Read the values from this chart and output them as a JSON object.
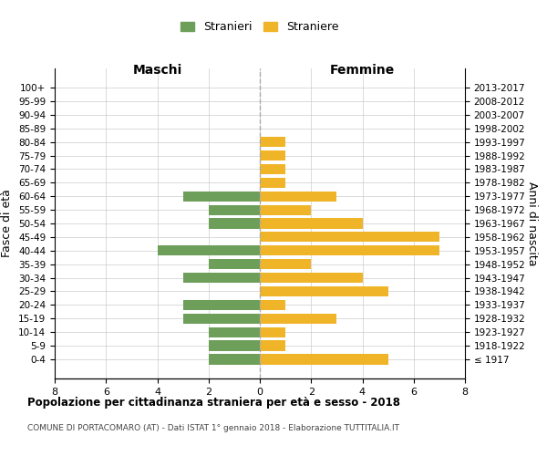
{
  "age_groups": [
    "100+",
    "95-99",
    "90-94",
    "85-89",
    "80-84",
    "75-79",
    "70-74",
    "65-69",
    "60-64",
    "55-59",
    "50-54",
    "45-49",
    "40-44",
    "35-39",
    "30-34",
    "25-29",
    "20-24",
    "15-19",
    "10-14",
    "5-9",
    "0-4"
  ],
  "birth_years": [
    "≤ 1917",
    "1918-1922",
    "1923-1927",
    "1928-1932",
    "1933-1937",
    "1938-1942",
    "1943-1947",
    "1948-1952",
    "1953-1957",
    "1958-1962",
    "1963-1967",
    "1968-1972",
    "1973-1977",
    "1978-1982",
    "1983-1987",
    "1988-1992",
    "1993-1997",
    "1998-2002",
    "2003-2007",
    "2008-2012",
    "2013-2017"
  ],
  "maschi": [
    0,
    0,
    0,
    0,
    0,
    0,
    0,
    0,
    3,
    2,
    2,
    0,
    4,
    2,
    3,
    0,
    3,
    3,
    2,
    2,
    2
  ],
  "femmine": [
    0,
    0,
    0,
    0,
    1,
    1,
    1,
    1,
    3,
    2,
    4,
    7,
    7,
    2,
    4,
    5,
    1,
    3,
    1,
    1,
    5
  ],
  "color_maschi": "#6d9e5a",
  "color_femmine": "#f0b429",
  "title": "Popolazione per cittadinanza straniera per età e sesso - 2018",
  "subtitle": "COMUNE DI PORTACOMARO (AT) - Dati ISTAT 1° gennaio 2018 - Elaborazione TUTTITALIA.IT",
  "xlabel_left": "Maschi",
  "xlabel_right": "Femmine",
  "ylabel": "Fasce di età",
  "ylabel_right": "Anni di nascita",
  "legend_maschi": "Stranieri",
  "legend_femmine": "Straniere",
  "xlim": 8,
  "background_color": "#ffffff",
  "grid_color": "#cccccc"
}
